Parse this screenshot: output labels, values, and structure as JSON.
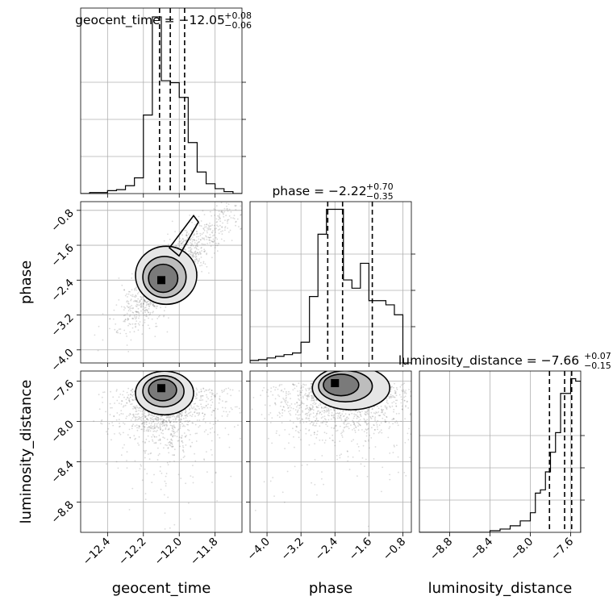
{
  "figure": {
    "type": "corner_plot",
    "parameters": [
      "geocent_time",
      "phase",
      "luminosity_distance"
    ]
  },
  "titles": {
    "geocent_time": {
      "name": "geocent_time",
      "eq": " = ",
      "median": "−12.05",
      "up": "+0.08",
      "down": "−0.06"
    },
    "phase": {
      "name": "phase",
      "eq": " = ",
      "median": "−2.22",
      "up": "+0.70",
      "down": "−0.35"
    },
    "luminosity_distance": {
      "name": "luminosity_distance",
      "eq": " = ",
      "median": "−7.66",
      "up": "+0.07",
      "down": "−0.15"
    }
  },
  "labels": {
    "x": [
      "geocent_time",
      "phase",
      "luminosity_distance"
    ],
    "y": [
      "phase",
      "luminosity_distance"
    ]
  },
  "ticks": {
    "geocent_time": [
      "−12.4",
      "−12.2",
      "−12.0",
      "−11.8"
    ],
    "phase": [
      "−4.0",
      "−3.2",
      "−2.4",
      "−1.6",
      "−0.8"
    ],
    "luminosity_distance": [
      "−8.8",
      "−8.4",
      "−8.0",
      "−7.6"
    ]
  },
  "chart_data": [
    {
      "type": "histogram",
      "parameter": "geocent_time",
      "xlim": [
        -12.55,
        -11.65
      ],
      "bin_edges": [
        -12.55,
        -12.5,
        -12.45,
        -12.4,
        -12.35,
        -12.3,
        -12.25,
        -12.2,
        -12.15,
        -12.1,
        -12.05,
        -12.0,
        -11.95,
        -11.9,
        -11.85,
        -11.8,
        -11.75,
        -11.7,
        -11.65
      ],
      "counts": [
        0,
        1,
        1,
        3,
        4,
        8,
        16,
        80,
        180,
        115,
        113,
        98,
        52,
        22,
        10,
        5,
        2,
        0
      ],
      "quantiles": [
        -12.11,
        -12.05,
        -11.97
      ],
      "grid": true
    },
    {
      "type": "histogram",
      "parameter": "phase",
      "xlim": [
        -4.4,
        -0.6
      ],
      "bin_edges": [
        -4.4,
        -4.2,
        -4.0,
        -3.8,
        -3.6,
        -3.4,
        -3.2,
        -3.0,
        -2.8,
        -2.6,
        -2.4,
        -2.2,
        -2.0,
        -1.8,
        -1.6,
        -1.4,
        -1.2,
        -1.0,
        -0.8,
        -0.6
      ],
      "counts": [
        3,
        4,
        6,
        8,
        10,
        12,
        25,
        80,
        155,
        185,
        185,
        100,
        90,
        120,
        75,
        75,
        70,
        58,
        0
      ],
      "quantiles": [
        -2.57,
        -2.22,
        -1.52
      ],
      "grid": true
    },
    {
      "type": "histogram",
      "parameter": "luminosity_distance",
      "xlim": [
        -9.1,
        -7.5
      ],
      "bin_edges": [
        -9.1,
        -9.0,
        -8.9,
        -8.8,
        -8.7,
        -8.6,
        -8.5,
        -8.4,
        -8.3,
        -8.2,
        -8.1,
        -8.0,
        -7.95,
        -7.9,
        -7.85,
        -7.8,
        -7.75,
        -7.7,
        -7.65,
        -7.6,
        -7.55,
        -7.5
      ],
      "counts": [
        0,
        0,
        0,
        0,
        0,
        0,
        0,
        2,
        4,
        8,
        14,
        24,
        48,
        52,
        74,
        98,
        122,
        170,
        170,
        188,
        185
      ],
      "quantiles": [
        -7.81,
        -7.66,
        -7.59
      ],
      "grid": true
    },
    {
      "type": "scatter_contour",
      "x": "geocent_time",
      "y": "phase",
      "xlim": [
        -12.55,
        -11.65
      ],
      "ylim": [
        -4.3,
        -0.6
      ],
      "peak": [
        -12.1,
        -2.4
      ]
    },
    {
      "type": "scatter_contour",
      "x": "geocent_time",
      "y": "luminosity_distance",
      "xlim": [
        -12.55,
        -11.65
      ],
      "ylim": [
        -9.1,
        -7.5
      ],
      "peak": [
        -12.1,
        -7.67
      ]
    },
    {
      "type": "scatter_contour",
      "x": "phase",
      "y": "luminosity_distance",
      "xlim": [
        -4.4,
        -0.6
      ],
      "ylim": [
        -9.1,
        -7.5
      ],
      "peak": [
        -2.4,
        -7.62
      ]
    }
  ]
}
